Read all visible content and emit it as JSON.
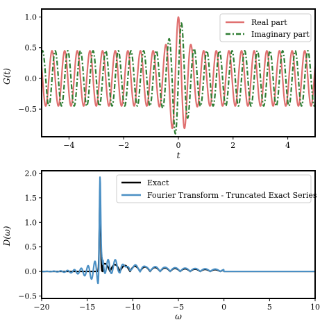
{
  "chart_data": [
    {
      "type": "line",
      "ylabel": "G(t)",
      "xlabel": "t",
      "xlim": [
        -5,
        5
      ],
      "ylim": [
        -0.95,
        1.13
      ],
      "xticks": [
        -4,
        -2,
        0,
        2,
        4
      ],
      "xtick_labels": [
        "−4",
        "−2",
        "0",
        "2",
        "4"
      ],
      "yticks": [
        -0.5,
        0.0,
        0.5,
        1.0
      ],
      "ytick_labels": [
        "−0.5",
        "0.0",
        "0.5",
        "1.0"
      ],
      "legend_position": "top-right",
      "series": [
        {
          "name": "Real part",
          "color": "#e07070",
          "style": "solid",
          "model": {
            "kind": "oscillation",
            "baseline_amplitude": 0.45,
            "frequency": 13.6,
            "phase": 0.0,
            "bump_amplitude": 0.55,
            "bump_width": 0.25
          }
        },
        {
          "name": "Imaginary part",
          "color": "#2e7d32",
          "style": "dashdot",
          "model": {
            "kind": "oscillation",
            "baseline_amplitude": 0.45,
            "frequency": 13.6,
            "phase": 1.5708,
            "bump_amplitude": 0.5,
            "bump_width": 0.25
          }
        }
      ],
      "grid": false
    },
    {
      "type": "line",
      "ylabel": "D(ω)",
      "xlabel": "ω",
      "xlim": [
        -20,
        10
      ],
      "ylim": [
        -0.55,
        2.05
      ],
      "xticks": [
        -20,
        -15,
        -10,
        -5,
        0,
        5,
        10
      ],
      "xtick_labels": [
        "−20",
        "−15",
        "−10",
        "−5",
        "0",
        "5",
        "10"
      ],
      "yticks": [
        -0.5,
        0.0,
        0.5,
        1.0,
        1.5,
        2.0
      ],
      "ytick_labels": [
        "−0.5",
        "0.0",
        "0.5",
        "1.0",
        "1.5",
        "2.0"
      ],
      "legend_position": "top-right",
      "series": [
        {
          "name": "Exact",
          "color": "#000000",
          "style": "solid",
          "model": {
            "kind": "spectrum",
            "peak_x": -13.6,
            "peak_y": 1.5,
            "tail_amp": 0.17,
            "tail_decay": 0.35,
            "tail_period": 1.1
          }
        },
        {
          "name": "Fourier Transform - Truncated Exact Series",
          "color": "#4a8fc4",
          "style": "solid",
          "model": {
            "kind": "spectrum",
            "peak_x": -13.6,
            "peak_y": 1.92,
            "tail_amp": 0.18,
            "tail_decay": 0.3,
            "tail_period": 1.1,
            "ringing": 0.32
          }
        }
      ],
      "grid": false
    }
  ]
}
